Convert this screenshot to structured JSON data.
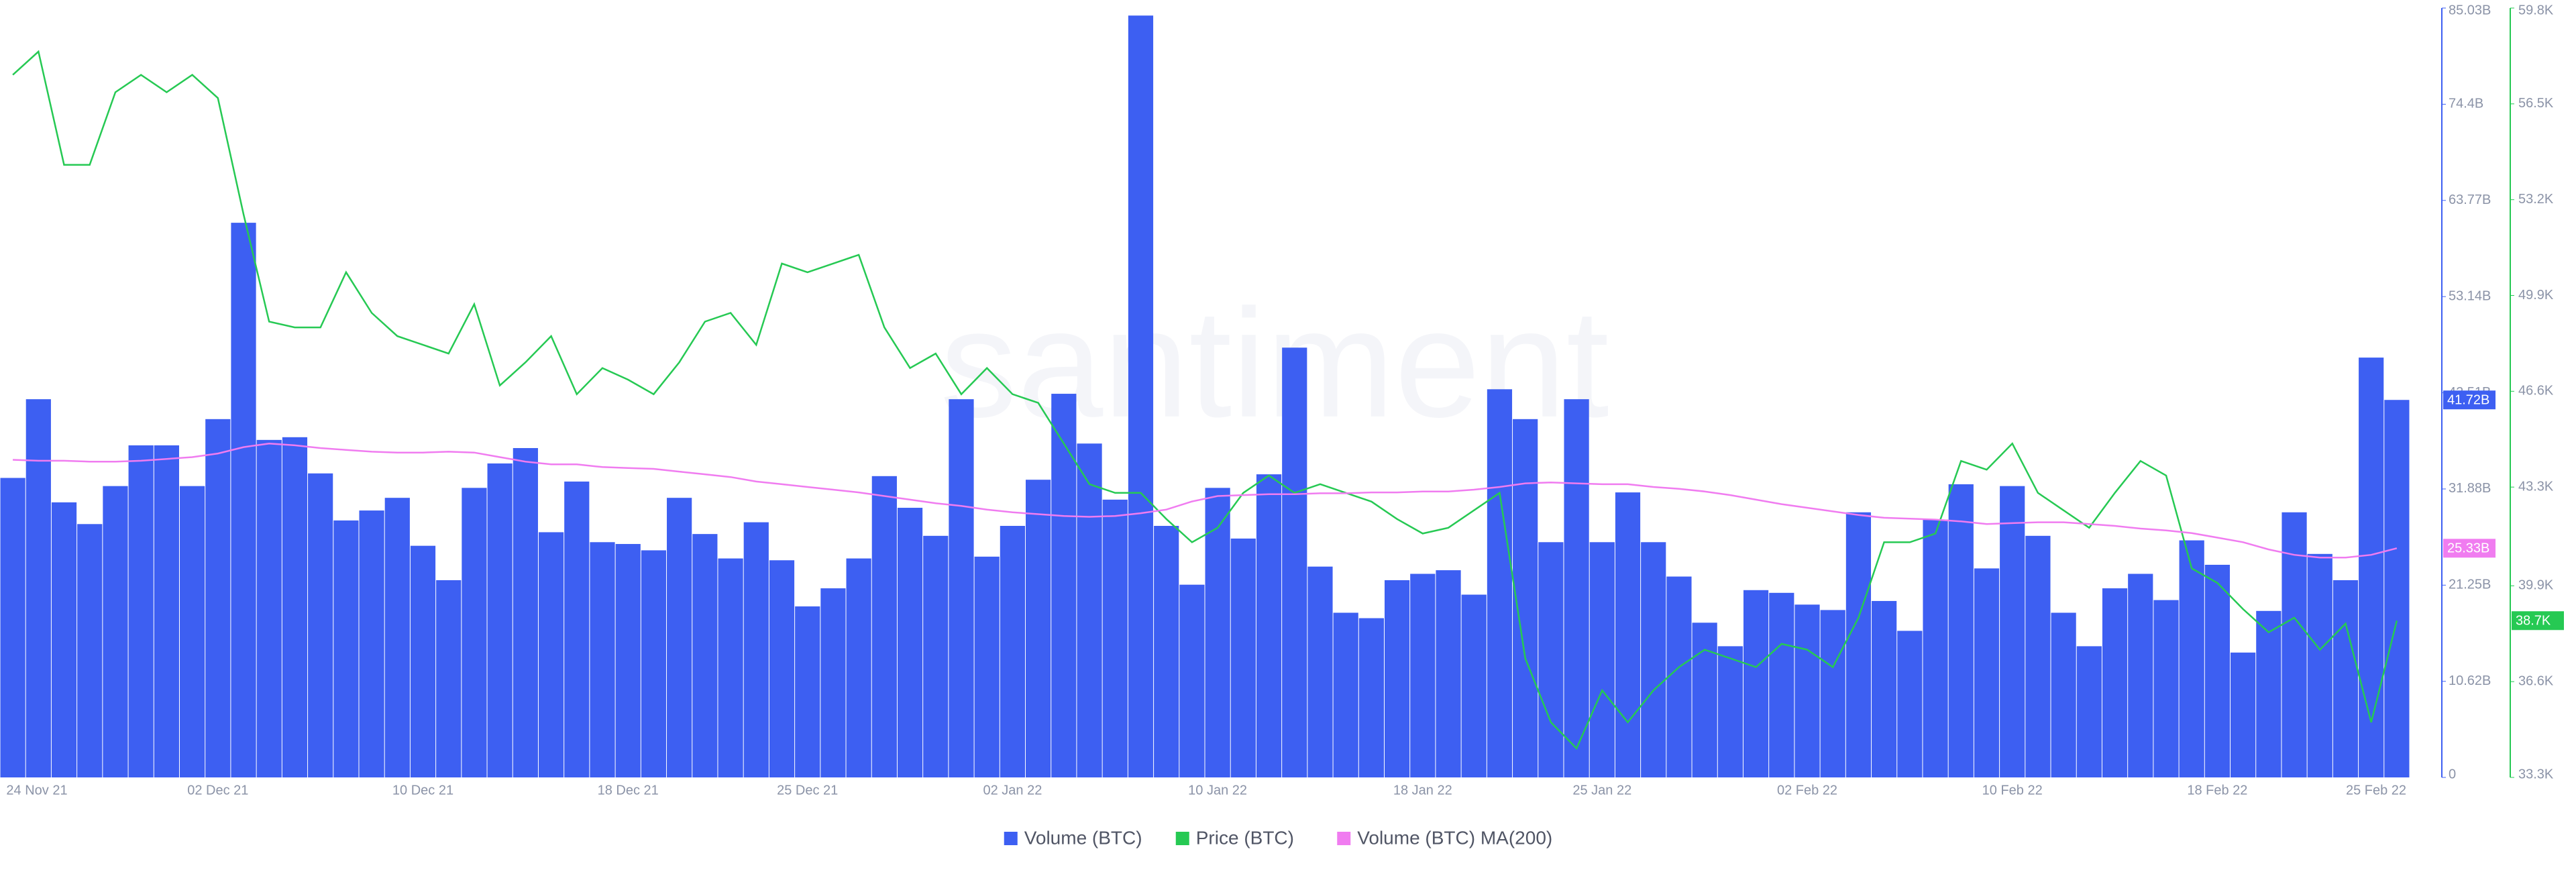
{
  "chart_data": {
    "type": "bar_line",
    "watermark": "santiment",
    "categories": [
      "24 Nov 21",
      null,
      null,
      null,
      null,
      null,
      null,
      null,
      "02 Dec 21",
      null,
      null,
      null,
      null,
      null,
      null,
      null,
      "10 Dec 21",
      null,
      null,
      null,
      null,
      null,
      null,
      null,
      "18 Dec 21",
      null,
      null,
      null,
      null,
      null,
      null,
      "25 Dec 21",
      null,
      null,
      null,
      null,
      null,
      null,
      null,
      "02 Jan 22",
      null,
      null,
      null,
      null,
      null,
      null,
      null,
      "10 Jan 22",
      null,
      null,
      null,
      null,
      null,
      null,
      null,
      "18 Jan 22",
      null,
      null,
      null,
      null,
      null,
      null,
      "25 Jan 22",
      null,
      null,
      null,
      null,
      null,
      null,
      null,
      "02 Feb 22",
      null,
      null,
      null,
      null,
      null,
      null,
      null,
      "10 Feb 22",
      null,
      null,
      null,
      null,
      null,
      null,
      null,
      "18 Feb 22",
      null,
      null,
      null,
      null,
      null,
      null,
      "25 Feb 22"
    ],
    "series": [
      {
        "name": "Volume (BTC)",
        "kind": "bar",
        "axis": "y",
        "color": "#3d5ff2",
        "last_label": "41.72B",
        "values": [
          33.1,
          41.8,
          30.4,
          28.0,
          32.2,
          36.7,
          36.7,
          32.2,
          39.6,
          61.3,
          37.3,
          37.6,
          33.6,
          28.4,
          29.5,
          30.9,
          25.6,
          21.8,
          32.0,
          34.7,
          36.4,
          27.1,
          32.7,
          26.0,
          25.8,
          25.1,
          30.9,
          26.9,
          24.2,
          28.2,
          24.0,
          18.9,
          20.9,
          24.2,
          33.3,
          29.8,
          26.7,
          41.8,
          24.4,
          27.8,
          32.9,
          42.4,
          36.9,
          30.7,
          84.2,
          27.8,
          21.3,
          32.0,
          26.4,
          33.5,
          47.5,
          23.3,
          18.2,
          17.6,
          21.8,
          22.5,
          22.9,
          20.2,
          42.9,
          39.6,
          26.0,
          41.8,
          26.0,
          31.5,
          26.0,
          22.2,
          17.1,
          14.5,
          20.7,
          20.4,
          19.1,
          18.5,
          29.3,
          19.5,
          16.2,
          28.5,
          32.4,
          23.1,
          32.2,
          26.7,
          18.2,
          14.5,
          20.9,
          22.5,
          19.6,
          26.2,
          23.5,
          13.8,
          18.4,
          29.3,
          24.7,
          21.8,
          46.4,
          41.72
        ]
      },
      {
        "name": "Price (BTC)",
        "kind": "line",
        "axis": "y2",
        "color": "#26c953",
        "last_label": "38.7K",
        "values": [
          57.5,
          58.3,
          54.4,
          54.4,
          56.9,
          57.5,
          56.9,
          57.5,
          56.7,
          52.7,
          49.0,
          48.8,
          48.8,
          50.7,
          49.3,
          48.5,
          48.2,
          47.9,
          49.6,
          46.8,
          47.6,
          48.5,
          46.5,
          47.4,
          47.0,
          46.5,
          47.6,
          49.0,
          49.3,
          48.2,
          51.0,
          50.7,
          51.0,
          51.3,
          48.8,
          47.4,
          47.9,
          46.5,
          47.4,
          46.5,
          46.2,
          44.8,
          43.4,
          43.1,
          43.1,
          42.2,
          41.4,
          41.9,
          43.1,
          43.7,
          43.1,
          43.4,
          43.1,
          42.8,
          42.2,
          41.7,
          41.9,
          42.5,
          43.1,
          37.4,
          35.2,
          34.3,
          36.3,
          35.2,
          36.3,
          37.1,
          37.7,
          37.4,
          37.1,
          37.9,
          37.7,
          37.1,
          38.8,
          41.4,
          41.4,
          41.7,
          44.2,
          43.9,
          44.8,
          43.1,
          42.5,
          41.9,
          43.1,
          44.2,
          43.7,
          40.5,
          40.0,
          39.1,
          38.3,
          38.8,
          37.7,
          38.6,
          35.2,
          38.7
        ]
      },
      {
        "name": "Volume (BTC) MA(200)",
        "kind": "line",
        "axis": "y",
        "color": "#f07cf0",
        "last_label": "25.33B",
        "values": [
          35.1,
          35.0,
          35.0,
          34.9,
          34.9,
          35.0,
          35.2,
          35.4,
          35.8,
          36.5,
          36.9,
          36.7,
          36.4,
          36.2,
          36.0,
          35.9,
          35.9,
          36.0,
          35.9,
          35.4,
          34.9,
          34.6,
          34.6,
          34.3,
          34.2,
          34.1,
          33.8,
          33.5,
          33.2,
          32.7,
          32.4,
          32.1,
          31.8,
          31.5,
          31.1,
          30.7,
          30.3,
          30.0,
          29.6,
          29.3,
          29.1,
          28.9,
          28.8,
          28.9,
          29.2,
          29.6,
          30.5,
          31.1,
          31.2,
          31.3,
          31.3,
          31.4,
          31.4,
          31.5,
          31.5,
          31.6,
          31.6,
          31.8,
          32.1,
          32.5,
          32.6,
          32.5,
          32.4,
          32.4,
          32.1,
          31.9,
          31.6,
          31.2,
          30.7,
          30.2,
          29.8,
          29.4,
          29.0,
          28.7,
          28.6,
          28.5,
          28.3,
          28.0,
          28.1,
          28.2,
          28.2,
          28.0,
          27.8,
          27.5,
          27.3,
          27.0,
          26.5,
          26.0,
          25.2,
          24.6,
          24.3,
          24.3,
          24.6,
          25.33
        ]
      }
    ],
    "ylim": [
      0,
      85.03
    ],
    "yticks": [
      0,
      {
        "value": 10.62,
        "label": "10.62B"
      },
      {
        "value": 21.25,
        "label": "21.25B"
      },
      {
        "value": 31.88,
        "label": "31.88B"
      },
      {
        "value": 42.51,
        "label": "42.51B"
      },
      {
        "value": 53.14,
        "label": "53.14B"
      },
      {
        "value": 63.77,
        "label": "63.77B"
      },
      {
        "value": 74.4,
        "label": "74.4B"
      },
      {
        "value": 85.03,
        "label": "85.03B"
      }
    ],
    "y2lim": [
      33.3,
      59.8
    ],
    "y2ticks": [
      {
        "value": 33.3,
        "label": "33.3K"
      },
      {
        "value": 36.6,
        "label": "36.6K"
      },
      {
        "value": 39.9,
        "label": "39.9K"
      },
      {
        "value": 43.3,
        "label": "43.3K"
      },
      {
        "value": 46.6,
        "label": "46.6K"
      },
      {
        "value": 49.9,
        "label": "49.9K"
      },
      {
        "value": 53.2,
        "label": "53.2K"
      },
      {
        "value": 56.5,
        "label": "56.5K"
      },
      {
        "value": 59.8,
        "label": "59.8K"
      }
    ],
    "legend": "bottom"
  }
}
